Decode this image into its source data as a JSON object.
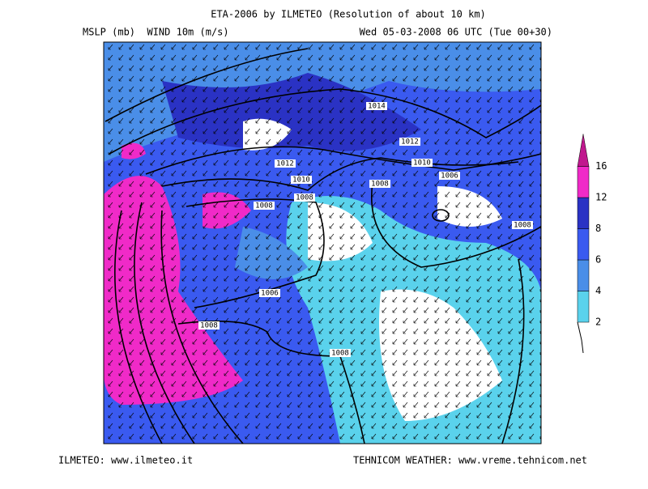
{
  "header": {
    "title": "ETA-2006 by ILMETEO (Resolution of about 10 km)",
    "left": "MSLP (mb)  WIND 10m (m/s)",
    "right": "Wed 05-03-2008 06 UTC (Tue 00+30)"
  },
  "isobar_labels": [
    "1014",
    "1012",
    "1012",
    "1010",
    "1010",
    "1006",
    "1008",
    "1008",
    "1008",
    "1008",
    "1006",
    "1008",
    "1008"
  ],
  "colorbar": {
    "labels": [
      2,
      4,
      6,
      8,
      12,
      16
    ],
    "colors": [
      "#5ad2ec",
      "#4a8ee8",
      "#3a5af0",
      "#2a32c4",
      "#f02ac8",
      "#c0188e"
    ]
  },
  "footer": {
    "left": "ILMETEO: www.ilmeteo.it",
    "right": "TEHNICOM WEATHER: www.vreme.tehnicom.net"
  }
}
